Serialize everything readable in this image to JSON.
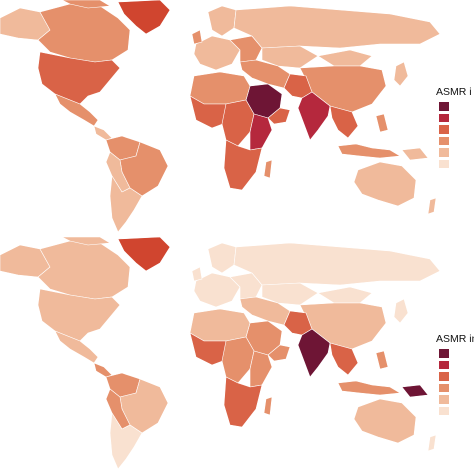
{
  "panels": [
    {
      "legend": {
        "title": "ASMR i",
        "swatches": [
          "#6e1535",
          "#b5283d",
          "#d96347",
          "#e5906b",
          "#f0ba9b",
          "#f9e1d0"
        ]
      }
    },
    {
      "legend": {
        "title": "ASMR in v",
        "swatches": [
          "#6e1535",
          "#b5283d",
          "#d96347",
          "#e5906b",
          "#f0ba9b",
          "#f9e1d0"
        ]
      }
    }
  ],
  "colors": {
    "darkest": "#6e1535",
    "dark": "#b5283d",
    "mid": "#d96347",
    "light": "#e5906b",
    "lighter": "#f0ba9b",
    "lightest": "#f9e1d0"
  }
}
